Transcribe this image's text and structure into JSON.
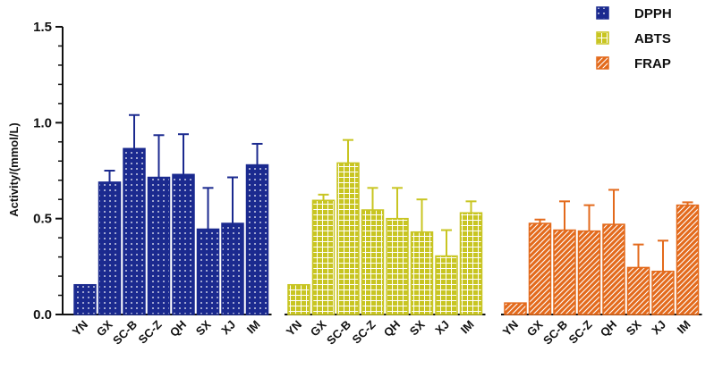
{
  "chart_data": {
    "type": "bar",
    "title": "",
    "xlabel": "",
    "ylabel": "Activity/(mmol/L)",
    "ylim": [
      0,
      1.5
    ],
    "yticks": [
      "0.0",
      "0.5",
      "1.0",
      "1.5"
    ],
    "grid": false,
    "legend_position": "top-right",
    "categories": [
      "YN",
      "GX",
      "SC-B",
      "SC-Z",
      "QH",
      "SX",
      "XJ",
      "IM"
    ],
    "series": [
      {
        "name": "DPPH",
        "color": "#1b2a8f",
        "pattern": "dots",
        "values": [
          0.155,
          0.69,
          0.865,
          0.715,
          0.73,
          0.445,
          0.475,
          0.78
        ],
        "errors": [
          0.0,
          0.06,
          0.175,
          0.22,
          0.21,
          0.215,
          0.24,
          0.11
        ]
      },
      {
        "name": "ABTS",
        "color": "#c8c522",
        "pattern": "grid",
        "values": [
          0.155,
          0.595,
          0.79,
          0.545,
          0.5,
          0.43,
          0.305,
          0.53
        ],
        "errors": [
          0.0,
          0.03,
          0.12,
          0.115,
          0.16,
          0.17,
          0.135,
          0.06
        ]
      },
      {
        "name": "FRAP",
        "color": "#e36a1c",
        "pattern": "diagonal",
        "values": [
          0.06,
          0.475,
          0.44,
          0.435,
          0.47,
          0.245,
          0.225,
          0.57
        ],
        "errors": [
          0.0,
          0.02,
          0.15,
          0.135,
          0.18,
          0.12,
          0.16,
          0.015
        ]
      }
    ]
  }
}
